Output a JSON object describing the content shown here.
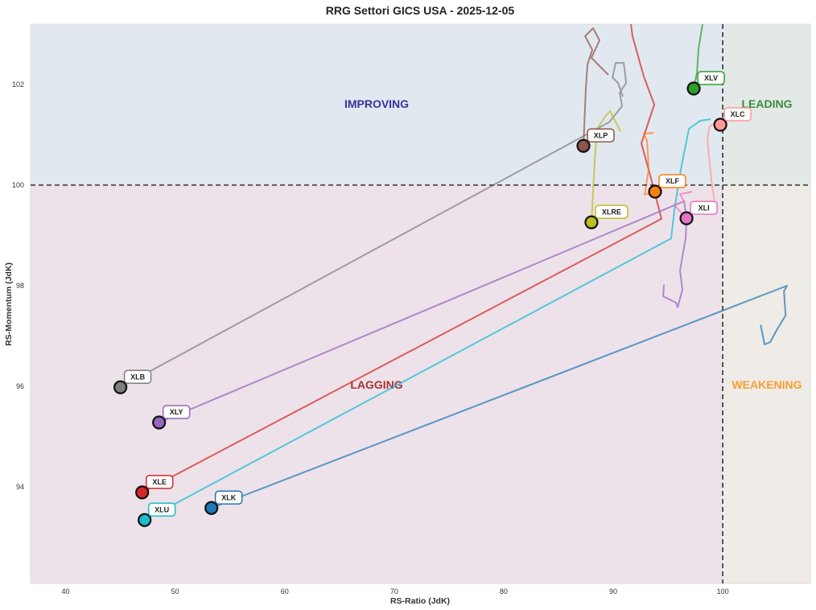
{
  "chart_data": {
    "type": "scatter",
    "title": "RRG Settori GICS USA - 2025-12-05",
    "xlabel": "RS-Ratio (JdK)",
    "ylabel": "RS-Momentum (JdK)",
    "xlim": [
      36.8,
      108.0
    ],
    "ylim": [
      92.08,
      103.2
    ],
    "xticks": [
      40,
      50,
      60,
      70,
      80,
      90,
      100
    ],
    "yticks": [
      94,
      96,
      98,
      100,
      102
    ],
    "grid": false,
    "reference_lines": {
      "x": 100,
      "y": 100
    },
    "quadrants": [
      {
        "label": "IMPROVING",
        "color": "#333399",
        "bg": "#e2e8ef"
      },
      {
        "label": "LEADING",
        "color": "#3a8a3a",
        "bg": "#e2e9e7"
      },
      {
        "label": "LAGGING",
        "color": "#a83232",
        "bg": "#ede2ea"
      },
      {
        "label": "WEAKENING",
        "color": "#f5a030",
        "bg": "#efebe6"
      }
    ],
    "series": [
      {
        "name": "XLK",
        "color": "#1f77b4",
        "head": [
          53.31,
          93.58
        ],
        "tail": [
          [
            103.46,
            97.22
          ],
          [
            103.82,
            96.83
          ],
          [
            104.34,
            96.88
          ],
          [
            104.93,
            97.12
          ],
          [
            105.74,
            97.41
          ],
          [
            105.59,
            97.89
          ],
          [
            105.88,
            98.0
          ]
        ]
      },
      {
        "name": "XLE",
        "color": "#d62728",
        "head": [
          46.99,
          93.89
        ],
        "tail": [
          [
            91.62,
            103.2
          ],
          [
            91.76,
            102.96
          ],
          [
            92.79,
            102.16
          ],
          [
            93.75,
            101.6
          ],
          [
            92.57,
            100.83
          ],
          [
            93.38,
            100.19
          ],
          [
            94.41,
            99.33
          ]
        ]
      },
      {
        "name": "XLU",
        "color": "#17becf",
        "head": [
          47.21,
          93.34
        ],
        "tail": [
          [
            98.9,
            101.31
          ],
          [
            97.94,
            101.28
          ],
          [
            96.91,
            101.12
          ],
          [
            96.18,
            100.32
          ],
          [
            95.59,
            99.52
          ],
          [
            95.29,
            98.94
          ]
        ]
      },
      {
        "name": "XLY",
        "color": "#9467bd",
        "head": [
          48.53,
          95.28
        ],
        "tail": [
          [
            94.63,
            98.02
          ],
          [
            94.56,
            97.79
          ],
          [
            95.74,
            97.66
          ],
          [
            95.88,
            97.57
          ],
          [
            96.32,
            97.92
          ],
          [
            96.1,
            98.3
          ],
          [
            96.62,
            98.96
          ],
          [
            96.69,
            99.33
          ],
          [
            96.47,
            99.68
          ]
        ]
      },
      {
        "name": "XLB",
        "color": "#7f7f7f",
        "head": [
          45.0,
          95.98
        ],
        "tail": [
          [
            90.88,
            101.76
          ],
          [
            90.44,
            102.03
          ],
          [
            89.93,
            102.14
          ],
          [
            90.22,
            102.43
          ],
          [
            90.96,
            102.43
          ],
          [
            91.18,
            102.03
          ],
          [
            90.59,
            101.84
          ],
          [
            90.81,
            101.57
          ],
          [
            89.63,
            101.25
          ]
        ]
      },
      {
        "name": "XLP",
        "color": "#8c564b",
        "head": [
          87.28,
          100.78
        ],
        "tail": [
          [
            89.56,
            102.19
          ],
          [
            88.01,
            102.53
          ],
          [
            88.75,
            102.88
          ],
          [
            88.16,
            103.12
          ],
          [
            87.43,
            102.96
          ],
          [
            88.09,
            102.69
          ],
          [
            87.65,
            102.4
          ],
          [
            87.5,
            101.92
          ]
        ]
      },
      {
        "name": "XLRE",
        "color": "#bcbd22",
        "head": [
          88.01,
          99.26
        ],
        "tail": [
          [
            90.66,
            101.07
          ],
          [
            89.71,
            101.47
          ],
          [
            89.26,
            101.36
          ],
          [
            88.53,
            101.12
          ],
          [
            88.31,
            100.48
          ]
        ]
      },
      {
        "name": "XLF",
        "color": "#ff7f0e",
        "head": [
          93.82,
          99.87
        ],
        "tail": [
          [
            93.68,
            101.04
          ],
          [
            92.79,
            101.02
          ],
          [
            93.09,
            100.88
          ],
          [
            93.24,
            100.32
          ],
          [
            92.87,
            99.81
          ]
        ]
      },
      {
        "name": "XLI",
        "color": "#e377c2",
        "head": [
          96.69,
          99.34
        ],
        "tail": [
          [
            97.21,
            99.87
          ],
          [
            96.1,
            99.82
          ],
          [
            96.47,
            99.68
          ],
          [
            95.59,
            99.6
          ]
        ]
      },
      {
        "name": "XLC",
        "color": "#ff9896",
        "head": [
          99.78,
          101.2
        ],
        "tail": [
          [
            99.34,
            99.55
          ],
          [
            98.97,
            100.08
          ],
          [
            98.75,
            100.56
          ],
          [
            98.6,
            100.88
          ],
          [
            98.75,
            101.15
          ],
          [
            99.34,
            101.25
          ]
        ]
      },
      {
        "name": "XLV",
        "color": "#2ca02c",
        "head": [
          97.35,
          101.92
        ],
        "tail": [
          [
            98.16,
            103.2
          ],
          [
            97.79,
            102.72
          ],
          [
            97.65,
            102.24
          ]
        ]
      }
    ]
  }
}
